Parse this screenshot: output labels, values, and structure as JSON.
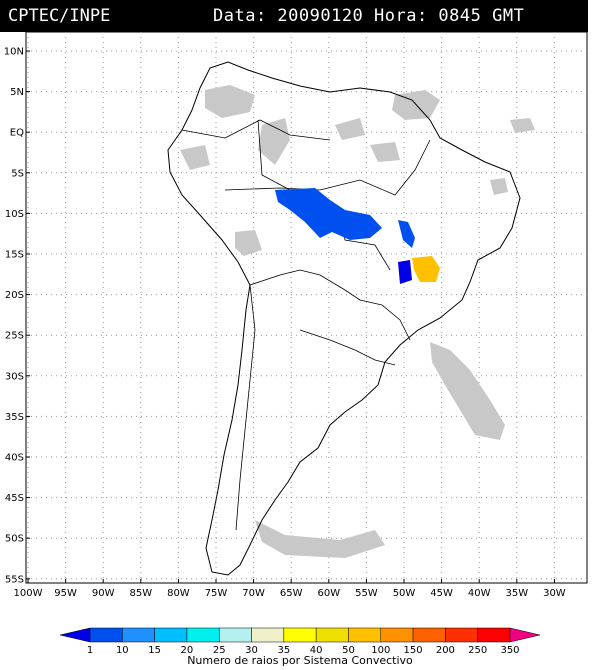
{
  "header": {
    "agency": "CPTEC/INPE",
    "timestamp": "Data: 20090120 Hora: 0845 GMT"
  },
  "map": {
    "lat_labels": [
      "10N",
      "5N",
      "EQ",
      "5S",
      "10S",
      "15S",
      "20S",
      "25S",
      "30S",
      "35S",
      "40S",
      "45S",
      "50S",
      "55S"
    ],
    "lon_labels": [
      "100W",
      "95W",
      "90W",
      "85W",
      "80W",
      "75W",
      "70W",
      "65W",
      "60W",
      "55W",
      "50W",
      "45W",
      "40W",
      "35W",
      "30W"
    ],
    "grid": "dotted"
  },
  "legend": {
    "values": [
      "1",
      "10",
      "15",
      "20",
      "25",
      "30",
      "35",
      "40",
      "50",
      "100",
      "150",
      "200",
      "250",
      "350"
    ],
    "colors": [
      "#0000e6",
      "#0050f0",
      "#1e90ff",
      "#00bfff",
      "#00f0f0",
      "#b4f0f0",
      "#f0f0c8",
      "#ffff00",
      "#f0e000",
      "#ffc000",
      "#ff9000",
      "#ff6000",
      "#ff3000",
      "#ff0000",
      "#f00080"
    ],
    "caption": "Numero de raios por Sistema Convectivo"
  }
}
